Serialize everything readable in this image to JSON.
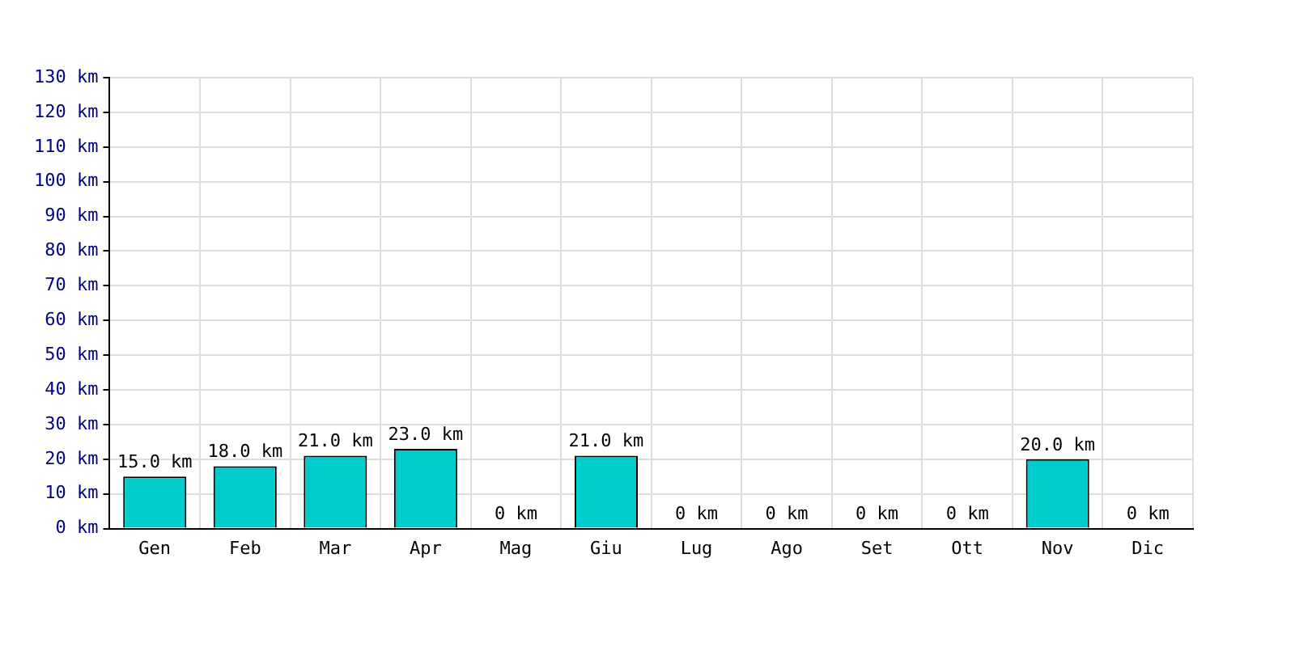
{
  "chart_data": {
    "type": "bar",
    "categories": [
      "Gen",
      "Feb",
      "Mar",
      "Apr",
      "Mag",
      "Giu",
      "Lug",
      "Ago",
      "Set",
      "Ott",
      "Nov",
      "Dic"
    ],
    "values": [
      15,
      18,
      21,
      23,
      0,
      21,
      0,
      0,
      0,
      0,
      20,
      0
    ],
    "value_labels": [
      "15.0 km",
      "18.0 km",
      "21.0 km",
      "23.0 km",
      "0 km",
      "21.0 km",
      "0 km",
      "0 km",
      "0 km",
      "0 km",
      "20.0 km",
      "0 km"
    ],
    "color": "#00cccc",
    "ylim": [
      0,
      130
    ],
    "yticks": [
      {
        "value": 0,
        "label": "0 km"
      },
      {
        "value": 10,
        "label": "10 km"
      },
      {
        "value": 20,
        "label": "20 km"
      },
      {
        "value": 30,
        "label": "30 km"
      },
      {
        "value": 40,
        "label": "40 km"
      },
      {
        "value": 50,
        "label": "50 km"
      },
      {
        "value": 60,
        "label": "60 km"
      },
      {
        "value": 70,
        "label": "70 km"
      },
      {
        "value": 80,
        "label": "80 km"
      },
      {
        "value": 90,
        "label": "90 km"
      },
      {
        "value": 100,
        "label": "100 km"
      },
      {
        "value": 110,
        "label": "110 km"
      },
      {
        "value": 120,
        "label": "120 km"
      },
      {
        "value": 130,
        "label": "130 km"
      }
    ],
    "grid": true,
    "legend": false
  }
}
